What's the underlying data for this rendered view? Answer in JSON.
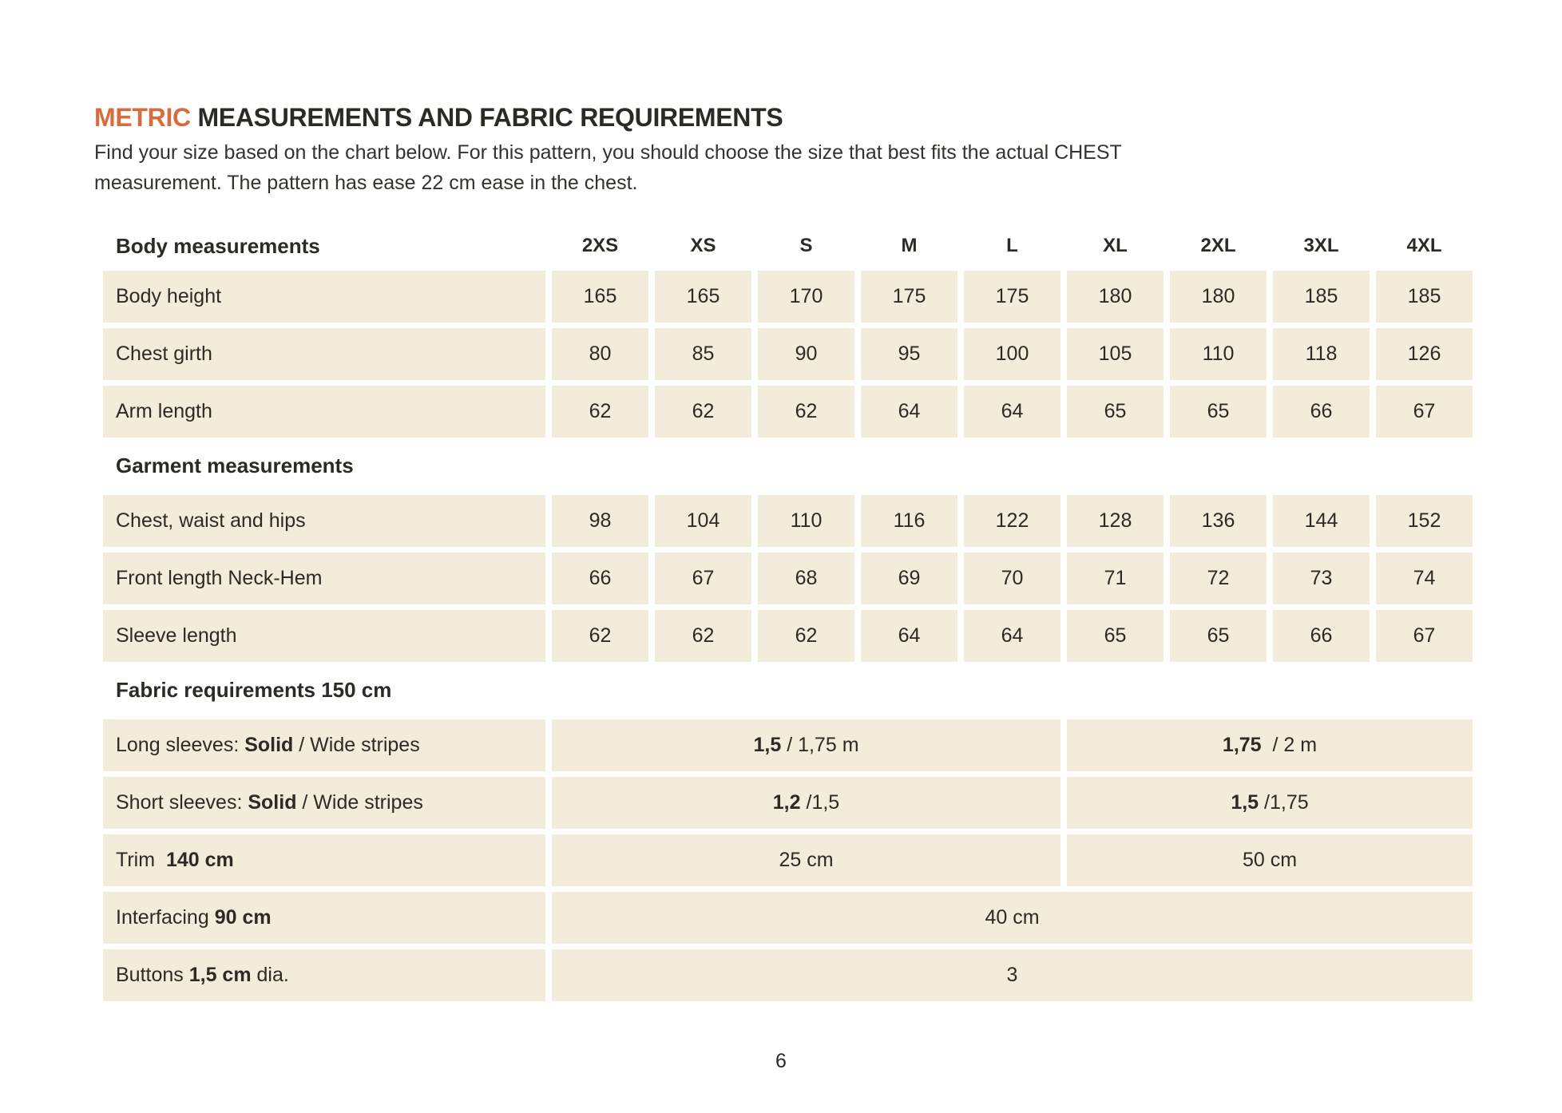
{
  "header": {
    "title_accent": "METRIC",
    "title_rest": " MEASUREMENTS AND FABRIC REQUIREMENTS",
    "intro_line1": "Find your size based on the chart below. For this pattern, you should choose the size that best fits the actual CHEST",
    "intro_line2": "measurement. The pattern has ease 22 cm ease in the chest."
  },
  "colors": {
    "accent_orange": "#d86c3f",
    "cell_beige": "#f4ecda",
    "text_dark": "#2d2a26"
  },
  "table": {
    "corner_label": "Body measurements",
    "size_headers": [
      "2XS",
      "XS",
      "S",
      "M",
      "L",
      "XL",
      "2XL",
      "3XL",
      "4XL"
    ],
    "sections": [
      {
        "header": null,
        "rows": [
          {
            "label": [
              {
                "text": "Body height",
                "bold": false
              }
            ],
            "cells": [
              {
                "bold": "",
                "text": "165",
                "cols": 1
              },
              {
                "bold": "",
                "text": "165",
                "cols": 1
              },
              {
                "bold": "",
                "text": "170",
                "cols": 1
              },
              {
                "bold": "",
                "text": "175",
                "cols": 1
              },
              {
                "bold": "",
                "text": "175",
                "cols": 1
              },
              {
                "bold": "",
                "text": "180",
                "cols": 1
              },
              {
                "bold": "",
                "text": "180",
                "cols": 1
              },
              {
                "bold": "",
                "text": "185",
                "cols": 1
              },
              {
                "bold": "",
                "text": "185",
                "cols": 1
              }
            ]
          },
          {
            "label": [
              {
                "text": "Chest girth",
                "bold": false
              }
            ],
            "cells": [
              {
                "bold": "",
                "text": "80",
                "cols": 1
              },
              {
                "bold": "",
                "text": "85",
                "cols": 1
              },
              {
                "bold": "",
                "text": "90",
                "cols": 1
              },
              {
                "bold": "",
                "text": "95",
                "cols": 1
              },
              {
                "bold": "",
                "text": "100",
                "cols": 1
              },
              {
                "bold": "",
                "text": "105",
                "cols": 1
              },
              {
                "bold": "",
                "text": "110",
                "cols": 1
              },
              {
                "bold": "",
                "text": "118",
                "cols": 1
              },
              {
                "bold": "",
                "text": "126",
                "cols": 1
              }
            ]
          },
          {
            "label": [
              {
                "text": "Arm length",
                "bold": false
              }
            ],
            "cells": [
              {
                "bold": "",
                "text": "62",
                "cols": 1
              },
              {
                "bold": "",
                "text": "62",
                "cols": 1
              },
              {
                "bold": "",
                "text": "62",
                "cols": 1
              },
              {
                "bold": "",
                "text": "64",
                "cols": 1
              },
              {
                "bold": "",
                "text": "64",
                "cols": 1
              },
              {
                "bold": "",
                "text": "65",
                "cols": 1
              },
              {
                "bold": "",
                "text": "65",
                "cols": 1
              },
              {
                "bold": "",
                "text": "66",
                "cols": 1
              },
              {
                "bold": "",
                "text": "67",
                "cols": 1
              }
            ]
          }
        ]
      },
      {
        "header": "Garment measurements",
        "rows": [
          {
            "label": [
              {
                "text": "Chest, waist and hips",
                "bold": false
              }
            ],
            "cells": [
              {
                "bold": "",
                "text": "98",
                "cols": 1
              },
              {
                "bold": "",
                "text": "104",
                "cols": 1
              },
              {
                "bold": "",
                "text": "110",
                "cols": 1
              },
              {
                "bold": "",
                "text": "116",
                "cols": 1
              },
              {
                "bold": "",
                "text": "122",
                "cols": 1
              },
              {
                "bold": "",
                "text": "128",
                "cols": 1
              },
              {
                "bold": "",
                "text": "136",
                "cols": 1
              },
              {
                "bold": "",
                "text": "144",
                "cols": 1
              },
              {
                "bold": "",
                "text": "152",
                "cols": 1
              }
            ]
          },
          {
            "label": [
              {
                "text": "Front length Neck-Hem",
                "bold": false
              }
            ],
            "cells": [
              {
                "bold": "",
                "text": "66",
                "cols": 1
              },
              {
                "bold": "",
                "text": "67",
                "cols": 1
              },
              {
                "bold": "",
                "text": "68",
                "cols": 1
              },
              {
                "bold": "",
                "text": "69",
                "cols": 1
              },
              {
                "bold": "",
                "text": "70",
                "cols": 1
              },
              {
                "bold": "",
                "text": "71",
                "cols": 1
              },
              {
                "bold": "",
                "text": "72",
                "cols": 1
              },
              {
                "bold": "",
                "text": "73",
                "cols": 1
              },
              {
                "bold": "",
                "text": "74",
                "cols": 1
              }
            ]
          },
          {
            "label": [
              {
                "text": "Sleeve length",
                "bold": false
              }
            ],
            "cells": [
              {
                "bold": "",
                "text": "62",
                "cols": 1
              },
              {
                "bold": "",
                "text": "62",
                "cols": 1
              },
              {
                "bold": "",
                "text": "62",
                "cols": 1
              },
              {
                "bold": "",
                "text": "64",
                "cols": 1
              },
              {
                "bold": "",
                "text": "64",
                "cols": 1
              },
              {
                "bold": "",
                "text": "65",
                "cols": 1
              },
              {
                "bold": "",
                "text": "65",
                "cols": 1
              },
              {
                "bold": "",
                "text": "66",
                "cols": 1
              },
              {
                "bold": "",
                "text": "67",
                "cols": 1
              }
            ]
          }
        ]
      },
      {
        "header": "Fabric requirements 150 cm",
        "rows": [
          {
            "label": [
              {
                "text": "Long sleeves: ",
                "bold": false
              },
              {
                "text": "Solid",
                "bold": true
              },
              {
                "text": " / Wide stripes",
                "bold": false
              }
            ],
            "cells": [
              {
                "bold": "1,5",
                "text": " / 1,75 m",
                "cols": 5
              },
              {
                "bold": "1,75",
                "text": "  / 2 m",
                "cols": 4
              }
            ]
          },
          {
            "label": [
              {
                "text": "Short sleeves: ",
                "bold": false
              },
              {
                "text": "Solid",
                "bold": true
              },
              {
                "text": " / Wide stripes",
                "bold": false
              }
            ],
            "cells": [
              {
                "bold": "1,2",
                "text": " /1,5",
                "cols": 5
              },
              {
                "bold": "1,5",
                "text": " /1,75",
                "cols": 4
              }
            ]
          },
          {
            "label": [
              {
                "text": "Trim  ",
                "bold": false
              },
              {
                "text": "140 cm",
                "bold": true
              }
            ],
            "cells": [
              {
                "bold": "",
                "text": "25 cm",
                "cols": 5
              },
              {
                "bold": "",
                "text": "50 cm",
                "cols": 4
              }
            ]
          },
          {
            "label": [
              {
                "text": "Interfacing ",
                "bold": false
              },
              {
                "text": "90 cm",
                "bold": true
              }
            ],
            "cells": [
              {
                "bold": "",
                "text": "40 cm",
                "cols": 9
              }
            ]
          },
          {
            "label": [
              {
                "text": "Buttons ",
                "bold": false
              },
              {
                "text": "1,5 cm",
                "bold": true
              },
              {
                "text": " dia.",
                "bold": false
              }
            ],
            "cells": [
              {
                "bold": "",
                "text": "3",
                "cols": 9
              }
            ]
          }
        ]
      }
    ]
  },
  "footer": {
    "page_number": "6"
  }
}
